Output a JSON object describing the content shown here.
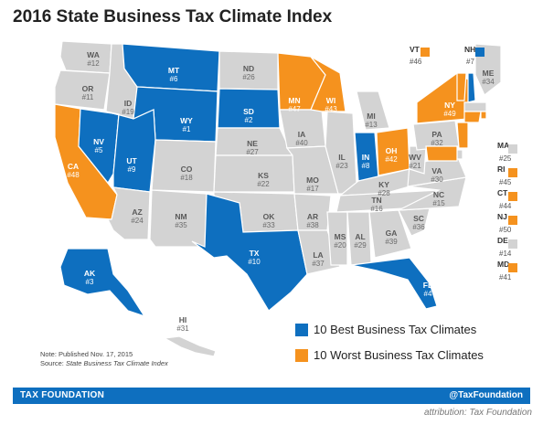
{
  "title": "2016 State Business Tax Climate Index",
  "colors": {
    "best": "#0e6fbf",
    "worst": "#f5921e",
    "neutral": "#d3d3d3",
    "border": "#ffffff"
  },
  "legend": {
    "best_label": "10 Best Business Tax Climates",
    "worst_label": "10 Worst Business Tax Climates"
  },
  "note": {
    "line1": "Note: Published Nov. 17, 2015",
    "source_prefix": "Source: ",
    "source_title": "State Business Tax Climate Index"
  },
  "footer": {
    "left": "TAX FOUNDATION",
    "right": "@TaxFoundation"
  },
  "attribution": "attribution: Tax Foundation",
  "states": [
    {
      "abbr": "WA",
      "rank": "#12",
      "category": "neutral"
    },
    {
      "abbr": "OR",
      "rank": "#11",
      "category": "neutral"
    },
    {
      "abbr": "CA",
      "rank": "#48",
      "category": "worst"
    },
    {
      "abbr": "NV",
      "rank": "#5",
      "category": "best"
    },
    {
      "abbr": "ID",
      "rank": "#19",
      "category": "neutral"
    },
    {
      "abbr": "MT",
      "rank": "#6",
      "category": "best"
    },
    {
      "abbr": "WY",
      "rank": "#1",
      "category": "best"
    },
    {
      "abbr": "UT",
      "rank": "#9",
      "category": "best"
    },
    {
      "abbr": "AZ",
      "rank": "#24",
      "category": "neutral"
    },
    {
      "abbr": "CO",
      "rank": "#18",
      "category": "neutral"
    },
    {
      "abbr": "NM",
      "rank": "#35",
      "category": "neutral"
    },
    {
      "abbr": "ND",
      "rank": "#26",
      "category": "neutral"
    },
    {
      "abbr": "SD",
      "rank": "#2",
      "category": "best"
    },
    {
      "abbr": "NE",
      "rank": "#27",
      "category": "neutral"
    },
    {
      "abbr": "KS",
      "rank": "#22",
      "category": "neutral"
    },
    {
      "abbr": "OK",
      "rank": "#33",
      "category": "neutral"
    },
    {
      "abbr": "TX",
      "rank": "#10",
      "category": "best"
    },
    {
      "abbr": "MN",
      "rank": "#47",
      "category": "worst"
    },
    {
      "abbr": "IA",
      "rank": "#40",
      "category": "neutral"
    },
    {
      "abbr": "MO",
      "rank": "#17",
      "category": "neutral"
    },
    {
      "abbr": "AR",
      "rank": "#38",
      "category": "neutral"
    },
    {
      "abbr": "LA",
      "rank": "#37",
      "category": "neutral"
    },
    {
      "abbr": "WI",
      "rank": "#43",
      "category": "worst"
    },
    {
      "abbr": "IL",
      "rank": "#23",
      "category": "neutral"
    },
    {
      "abbr": "MI",
      "rank": "#13",
      "category": "neutral"
    },
    {
      "abbr": "IN",
      "rank": "#8",
      "category": "best"
    },
    {
      "abbr": "OH",
      "rank": "#42",
      "category": "worst"
    },
    {
      "abbr": "KY",
      "rank": "#28",
      "category": "neutral"
    },
    {
      "abbr": "TN",
      "rank": "#16",
      "category": "neutral"
    },
    {
      "abbr": "MS",
      "rank": "#20",
      "category": "neutral"
    },
    {
      "abbr": "AL",
      "rank": "#29",
      "category": "neutral"
    },
    {
      "abbr": "GA",
      "rank": "#39",
      "category": "neutral"
    },
    {
      "abbr": "FL",
      "rank": "#4",
      "category": "best"
    },
    {
      "abbr": "SC",
      "rank": "#36",
      "category": "neutral"
    },
    {
      "abbr": "NC",
      "rank": "#15",
      "category": "neutral"
    },
    {
      "abbr": "VA",
      "rank": "#30",
      "category": "neutral"
    },
    {
      "abbr": "WV",
      "rank": "#21",
      "category": "neutral"
    },
    {
      "abbr": "PA",
      "rank": "#32",
      "category": "neutral"
    },
    {
      "abbr": "NY",
      "rank": "#49",
      "category": "worst"
    },
    {
      "abbr": "ME",
      "rank": "#34",
      "category": "neutral"
    },
    {
      "abbr": "AK",
      "rank": "#3",
      "category": "best"
    },
    {
      "abbr": "HI",
      "rank": "#31",
      "category": "neutral"
    },
    {
      "abbr": "VT",
      "rank": "#46",
      "category": "worst"
    },
    {
      "abbr": "NH",
      "rank": "#7",
      "category": "best"
    },
    {
      "abbr": "MA",
      "rank": "#25",
      "category": "neutral"
    },
    {
      "abbr": "RI",
      "rank": "#45",
      "category": "worst"
    },
    {
      "abbr": "CT",
      "rank": "#44",
      "category": "worst"
    },
    {
      "abbr": "NJ",
      "rank": "#50",
      "category": "worst"
    },
    {
      "abbr": "DE",
      "rank": "#14",
      "category": "neutral"
    },
    {
      "abbr": "MD",
      "rank": "#41",
      "category": "worst"
    }
  ]
}
